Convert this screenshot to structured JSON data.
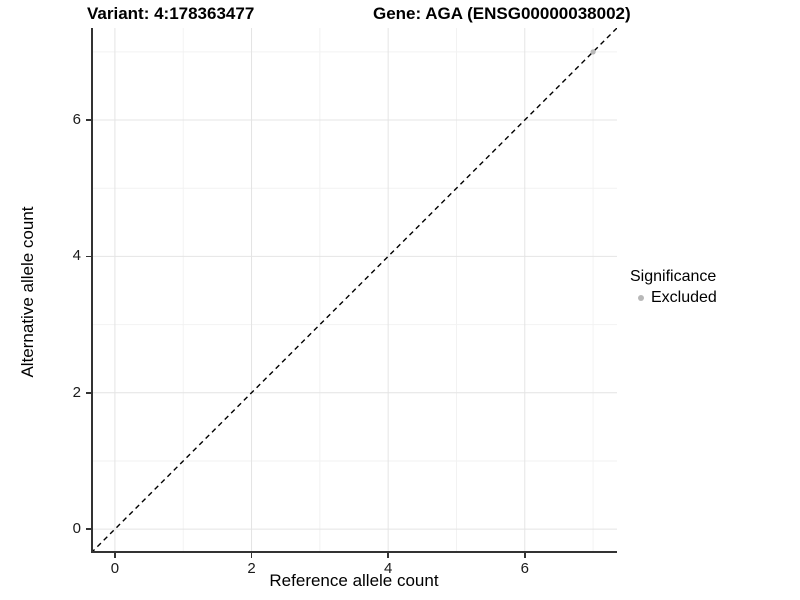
{
  "titles": {
    "variant": "Variant: 4:178363477",
    "gene": "Gene: AGA (ENSG00000038002)"
  },
  "chart_data": {
    "type": "scatter",
    "title": "Variant: 4:178363477 / Gene: AGA (ENSG00000038002)",
    "xlabel": "Reference allele count",
    "ylabel": "Alternative allele count",
    "xlim": [
      -0.35,
      7.35
    ],
    "ylim": [
      -0.35,
      7.35
    ],
    "x_major_ticks": [
      0,
      2,
      4,
      6
    ],
    "y_major_ticks": [
      0,
      2,
      4,
      6
    ],
    "x_minor_ticks": [
      1,
      3,
      5,
      7
    ],
    "y_minor_ticks": [
      1,
      3,
      5,
      7
    ],
    "grid": "major and minor, light grey on white",
    "reference_line": {
      "slope": 1,
      "intercept": 0,
      "style": "dashed",
      "color": "#000000"
    },
    "series": [
      {
        "name": "Excluded",
        "points": [
          {
            "x": 7,
            "y": 7
          }
        ],
        "color": "#b8b8b8"
      }
    ],
    "legend": {
      "title": "Significance",
      "position": "right",
      "items": [
        {
          "label": "Excluded",
          "color": "#b8b8b8"
        }
      ]
    },
    "colors": {
      "grid_major": "#e4e4e4",
      "grid_minor": "#f2f2f2",
      "axis_line": "#333333",
      "tick_text": "#1a1a1a",
      "point": "#b8b8b8"
    }
  }
}
